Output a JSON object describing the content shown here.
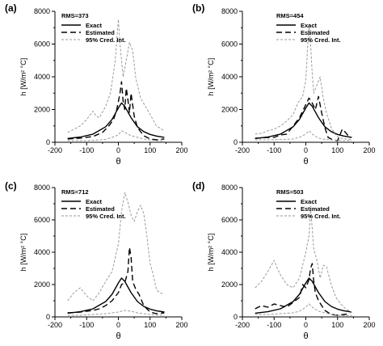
{
  "chart_data": [
    {
      "type": "line",
      "panel_label": "(a)",
      "annotation": "RMS=373",
      "xlabel": "θ",
      "ylabel": "h [W/m² °C]",
      "xlim": [
        -200,
        200
      ],
      "ylim": [
        0,
        8000
      ],
      "xticks": [
        "-200",
        "-100",
        "0",
        "100",
        "200"
      ],
      "yticks": [
        "0",
        "2000",
        "4000",
        "6000",
        "8000"
      ],
      "legend": [
        "Exact",
        "Estimated",
        "95% Cred. Int."
      ],
      "legend_position": "top-left",
      "series": [
        {
          "name": "Exact",
          "style": "solid",
          "x": [
            -160,
            -120,
            -80,
            -40,
            -20,
            0,
            10,
            20,
            40,
            60,
            80,
            100,
            120,
            145
          ],
          "y": [
            230,
            320,
            500,
            950,
            1400,
            2100,
            2400,
            2200,
            1500,
            950,
            650,
            480,
            380,
            300
          ]
        },
        {
          "name": "Estimated",
          "style": "dashed",
          "x": [
            -160,
            -120,
            -80,
            -50,
            -30,
            -15,
            -5,
            5,
            10,
            15,
            20,
            25,
            30,
            35,
            40,
            50,
            60,
            80,
            100,
            120,
            145
          ],
          "y": [
            200,
            250,
            350,
            600,
            1000,
            1400,
            2000,
            3000,
            3700,
            2500,
            2000,
            3300,
            2600,
            1800,
            3000,
            1600,
            900,
            400,
            200,
            150,
            200
          ]
        },
        {
          "name": "95% Cred. Int. upper",
          "style": "dotted",
          "x": [
            -160,
            -140,
            -120,
            -100,
            -80,
            -70,
            -60,
            -40,
            -25,
            -10,
            0,
            5,
            15,
            25,
            35,
            45,
            55,
            70,
            85,
            100,
            120,
            145
          ],
          "y": [
            600,
            800,
            1000,
            1400,
            1900,
            1600,
            1500,
            2200,
            3000,
            5000,
            7500,
            6000,
            4000,
            5000,
            6100,
            5600,
            3900,
            2700,
            2200,
            1700,
            1000,
            700
          ]
        },
        {
          "name": "95% Cred. Int. lower",
          "style": "dotted",
          "x": [
            -160,
            -120,
            -80,
            -40,
            -20,
            0,
            10,
            20,
            40,
            60,
            80,
            100,
            120,
            145
          ],
          "y": [
            100,
            100,
            120,
            180,
            300,
            450,
            700,
            600,
            400,
            300,
            200,
            150,
            100,
            80
          ]
        }
      ]
    },
    {
      "type": "line",
      "panel_label": "(b)",
      "annotation": "RMS=454",
      "xlabel": "θ",
      "ylabel": "h [W/m² °C]",
      "xlim": [
        -200,
        200
      ],
      "ylim": [
        0,
        8000
      ],
      "xticks": [
        "-200",
        "-100",
        "0",
        "100",
        "200"
      ],
      "yticks": [
        "0",
        "2000",
        "4000",
        "6000",
        "8000"
      ],
      "legend": [
        "Exact",
        "Estimated",
        "95% Cred. Int."
      ],
      "legend_position": "top-right",
      "series": [
        {
          "name": "Exact",
          "style": "solid",
          "x": [
            -160,
            -120,
            -80,
            -40,
            -20,
            0,
            10,
            20,
            40,
            60,
            80,
            100,
            120,
            145
          ],
          "y": [
            230,
            320,
            500,
            950,
            1400,
            2100,
            2400,
            2200,
            1500,
            950,
            650,
            480,
            380,
            300
          ]
        },
        {
          "name": "Estimated",
          "style": "dashed",
          "x": [
            -160,
            -130,
            -100,
            -80,
            -60,
            -40,
            -20,
            -5,
            10,
            20,
            30,
            40,
            50,
            60,
            70,
            85,
            100,
            115,
            125,
            140
          ],
          "y": [
            250,
            280,
            300,
            450,
            500,
            1000,
            1500,
            2100,
            2700,
            2400,
            2000,
            2800,
            1800,
            900,
            300,
            150,
            100,
            800,
            600,
            250
          ]
        },
        {
          "name": "95% Cred. Int. upper",
          "style": "dotted",
          "x": [
            -160,
            -140,
            -120,
            -100,
            -80,
            -60,
            -40,
            -25,
            -10,
            0,
            5,
            10,
            15,
            20,
            25,
            35,
            45,
            55,
            65,
            80,
            95,
            110,
            125,
            145
          ],
          "y": [
            500,
            550,
            700,
            800,
            1000,
            1300,
            1700,
            2400,
            2800,
            3800,
            5700,
            7100,
            6000,
            4200,
            3000,
            3500,
            4000,
            2700,
            1800,
            900,
            400,
            250,
            200,
            150
          ]
        },
        {
          "name": "95% Cred. Int. lower",
          "style": "dotted",
          "x": [
            -160,
            -120,
            -80,
            -40,
            -20,
            0,
            10,
            20,
            40,
            60,
            80,
            100,
            120,
            145
          ],
          "y": [
            150,
            150,
            170,
            200,
            300,
            500,
            700,
            500,
            250,
            180,
            150,
            120,
            100,
            100
          ]
        }
      ]
    },
    {
      "type": "line",
      "panel_label": "(c)",
      "annotation": "RMS=712",
      "xlabel": "θ",
      "ylabel": "h [W/m² °C]",
      "xlim": [
        -200,
        200
      ],
      "ylim": [
        0,
        8000
      ],
      "xticks": [
        "-200",
        "-100",
        "0",
        "100",
        "200"
      ],
      "yticks": [
        "0",
        "2000",
        "4000",
        "6000",
        "8000"
      ],
      "legend": [
        "Exact",
        "Estimated",
        "95% Cred. Int."
      ],
      "legend_position": "top-left",
      "series": [
        {
          "name": "Exact",
          "style": "solid",
          "x": [
            -160,
            -120,
            -80,
            -40,
            -20,
            0,
            10,
            20,
            40,
            60,
            80,
            100,
            120,
            145
          ],
          "y": [
            230,
            320,
            500,
            950,
            1400,
            2100,
            2400,
            2200,
            1500,
            950,
            650,
            480,
            380,
            300
          ]
        },
        {
          "name": "Estimated",
          "style": "dashed",
          "x": [
            -160,
            -120,
            -80,
            -60,
            -40,
            -20,
            0,
            10,
            20,
            30,
            35,
            40,
            45,
            55,
            65,
            80,
            100,
            120,
            145
          ],
          "y": [
            250,
            300,
            400,
            500,
            700,
            1000,
            1500,
            2000,
            2100,
            2800,
            4300,
            3700,
            2200,
            1700,
            1400,
            700,
            300,
            200,
            250
          ]
        },
        {
          "name": "95% Cred. Int. upper",
          "style": "dotted",
          "x": [
            -160,
            -140,
            -120,
            -100,
            -80,
            -60,
            -40,
            -20,
            0,
            10,
            20,
            30,
            40,
            50,
            60,
            70,
            80,
            90,
            100,
            110,
            120,
            130,
            145
          ],
          "y": [
            1000,
            1500,
            1800,
            1300,
            1000,
            1500,
            2200,
            2800,
            4500,
            6500,
            7700,
            7100,
            6300,
            5900,
            6500,
            6900,
            6400,
            5000,
            3300,
            2600,
            1700,
            1500,
            1400
          ]
        },
        {
          "name": "95% Cred. Int. lower",
          "style": "dotted",
          "x": [
            -160,
            -120,
            -80,
            -40,
            0,
            20,
            40,
            60,
            80,
            100,
            120,
            145
          ],
          "y": [
            100,
            100,
            150,
            200,
            300,
            400,
            350,
            250,
            200,
            150,
            120,
            100
          ]
        }
      ]
    },
    {
      "type": "line",
      "panel_label": "(d)",
      "annotation": "RMS=503",
      "xlabel": "θ",
      "ylabel": "h [W/m² °C]",
      "xlim": [
        -200,
        200
      ],
      "ylim": [
        0,
        8000
      ],
      "xticks": [
        "-200",
        "-100",
        "0",
        "100",
        "200"
      ],
      "yticks": [
        "0",
        "2000",
        "4000",
        "6000",
        "8000"
      ],
      "legend": [
        "Exact",
        "Estimated",
        "95% Cred. Int."
      ],
      "legend_position": "top-right",
      "series": [
        {
          "name": "Exact",
          "style": "solid",
          "x": [
            -160,
            -120,
            -80,
            -40,
            -20,
            0,
            10,
            20,
            40,
            60,
            80,
            100,
            120,
            145
          ],
          "y": [
            230,
            320,
            500,
            950,
            1400,
            2100,
            2400,
            2200,
            1500,
            950,
            650,
            480,
            380,
            300
          ]
        },
        {
          "name": "Estimated",
          "style": "dashed",
          "x": [
            -160,
            -140,
            -120,
            -100,
            -80,
            -60,
            -40,
            -20,
            -10,
            0,
            10,
            15,
            20,
            25,
            30,
            40,
            50,
            60,
            80,
            100,
            120,
            140
          ],
          "y": [
            500,
            700,
            600,
            800,
            700,
            600,
            900,
            1200,
            2000,
            1800,
            2300,
            3000,
            3300,
            2200,
            1500,
            1000,
            700,
            400,
            150,
            100,
            150,
            200
          ]
        },
        {
          "name": "95% Cred. Int. upper",
          "style": "dotted",
          "x": [
            -160,
            -140,
            -120,
            -100,
            -90,
            -80,
            -60,
            -40,
            -20,
            -10,
            0,
            10,
            15,
            20,
            25,
            35,
            45,
            55,
            65,
            80,
            95,
            110,
            125,
            145
          ],
          "y": [
            1800,
            2200,
            2800,
            3500,
            3000,
            2600,
            2000,
            1800,
            2400,
            3200,
            4000,
            5000,
            6600,
            5500,
            4200,
            3500,
            2400,
            3200,
            3100,
            2000,
            1200,
            800,
            500,
            300
          ]
        },
        {
          "name": "95% Cred. Int. lower",
          "style": "dotted",
          "x": [
            -160,
            -120,
            -80,
            -40,
            -20,
            0,
            10,
            20,
            40,
            60,
            80,
            100,
            120,
            145
          ],
          "y": [
            150,
            150,
            200,
            250,
            350,
            600,
            800,
            600,
            350,
            250,
            150,
            100,
            80,
            80
          ]
        }
      ]
    }
  ]
}
